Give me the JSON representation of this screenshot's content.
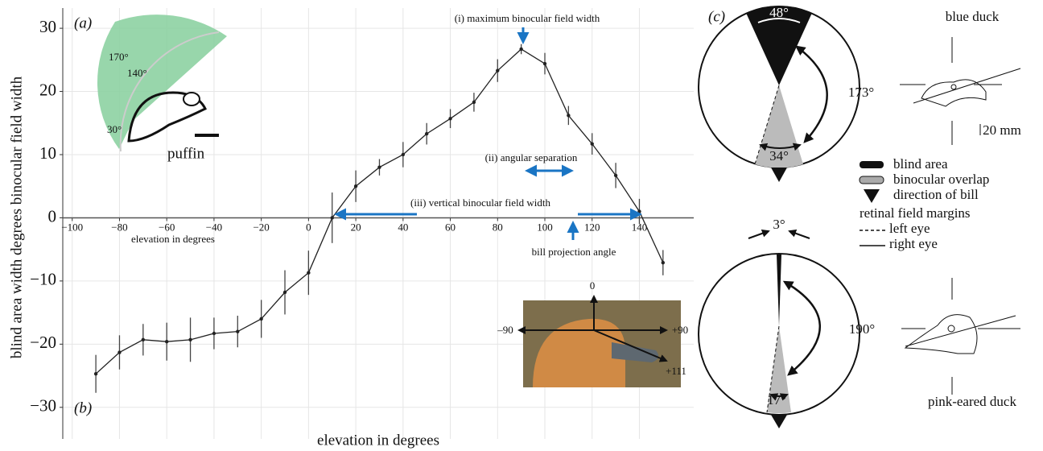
{
  "chart_data": {
    "type": "line",
    "x_label": "elevation in degrees",
    "x_label_inner": "elevation in degrees",
    "y_label": "blind area width degrees binocular field width",
    "x": [
      -90,
      -80,
      -70,
      -60,
      -50,
      -40,
      -30,
      -20,
      -10,
      0,
      10,
      20,
      30,
      40,
      50,
      60,
      70,
      80,
      90,
      100,
      110,
      120,
      130,
      140,
      150
    ],
    "series": [
      {
        "color": "#222222",
        "values": [
          -24.7,
          -21.3,
          -19.3,
          -19.6,
          -19.3,
          -18.3,
          -18.0,
          -16.0,
          -11.8,
          -8.7,
          0,
          5.0,
          8.0,
          10.0,
          13.3,
          15.7,
          18.3,
          23.3,
          26.7,
          24.4,
          16.2,
          11.7,
          6.7,
          1.0,
          -7.1
        ],
        "errors": [
          3,
          2.7,
          2.5,
          3,
          3.5,
          2.5,
          2.5,
          3,
          3.5,
          3.5,
          4,
          2.5,
          1.3,
          2,
          1.7,
          1.5,
          1.5,
          1.8,
          0.8,
          1.7,
          1.5,
          1.7,
          2,
          2,
          2
        ]
      }
    ],
    "xlim": [
      -104,
      163
    ],
    "ylim": [
      -35,
      33.2
    ],
    "xticks": [
      {
        "value": -100,
        "label": "−100"
      },
      {
        "value": -80,
        "label": "−80"
      },
      {
        "value": -60,
        "label": "−60"
      },
      {
        "value": -40,
        "label": "−40"
      },
      {
        "value": -20,
        "label": "−20"
      },
      0,
      20,
      40,
      60,
      80,
      100,
      120,
      140
    ],
    "yticks": [
      {
        "value": -30,
        "label": "−30"
      },
      {
        "value": -20,
        "label": "−20"
      },
      {
        "value": -10,
        "label": "−10"
      },
      0,
      10,
      20,
      30
    ],
    "grid": true,
    "annotations": {
      "panel_a": "(a)",
      "panel_b": "(b)",
      "max_width": "(i) maximum binocular field width",
      "separation": "(ii) angular separation",
      "vertical": "(iii) vertical binocular field width",
      "bill_angle": "bill projection angle",
      "puffin": "puffin",
      "puffin_170": "170°",
      "puffin_140": "140°",
      "puffin_30": "30°",
      "photo_0": "0",
      "photo_m90": "–90",
      "photo_p90": "+90",
      "photo_p111": "+111"
    }
  },
  "panel_c": {
    "label": "(c)",
    "blue_duck": "blue duck",
    "blue_blind": "48°",
    "blue_sep": "173°",
    "blue_overlap": "34°",
    "scale": "20 mm",
    "legend": {
      "blind": "blind area",
      "overlap": "binocular overlap",
      "bill": "direction of bill",
      "margins": "retinal field margins",
      "left": "left eye",
      "right": "right eye"
    },
    "pink_duck": "pink-eared duck",
    "pink_blind": "3°",
    "pink_sep": "190°",
    "pink_overlap": "17°"
  }
}
